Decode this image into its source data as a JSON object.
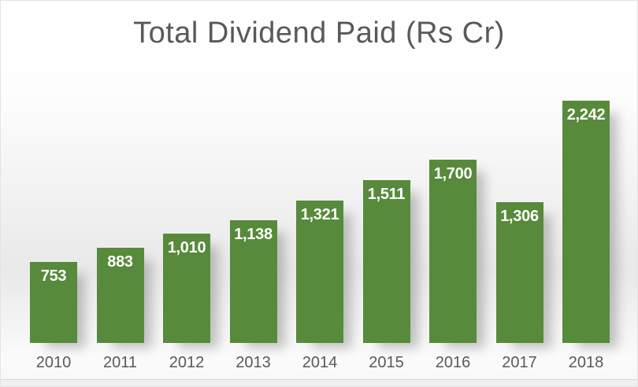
{
  "chart_data": {
    "type": "bar",
    "title": "Total Dividend Paid (Rs Cr)",
    "categories": [
      "2010",
      "2011",
      "2012",
      "2013",
      "2014",
      "2015",
      "2016",
      "2017",
      "2018"
    ],
    "values": [
      753,
      883,
      1010,
      1138,
      1321,
      1511,
      1700,
      1306,
      2242
    ],
    "value_labels": [
      "753",
      "883",
      "1,010",
      "1,138",
      "1,321",
      "1,511",
      "1,700",
      "1,306",
      "2,242"
    ],
    "xlabel": "",
    "ylabel": "",
    "ylim": [
      0,
      2500
    ],
    "grid": false,
    "legend": "none",
    "data_label_position": "inside-end",
    "bar_color": "#578a3b",
    "data_label_color": "#ffffff",
    "axis_text_color": "#595959",
    "title_color": "#595959"
  }
}
